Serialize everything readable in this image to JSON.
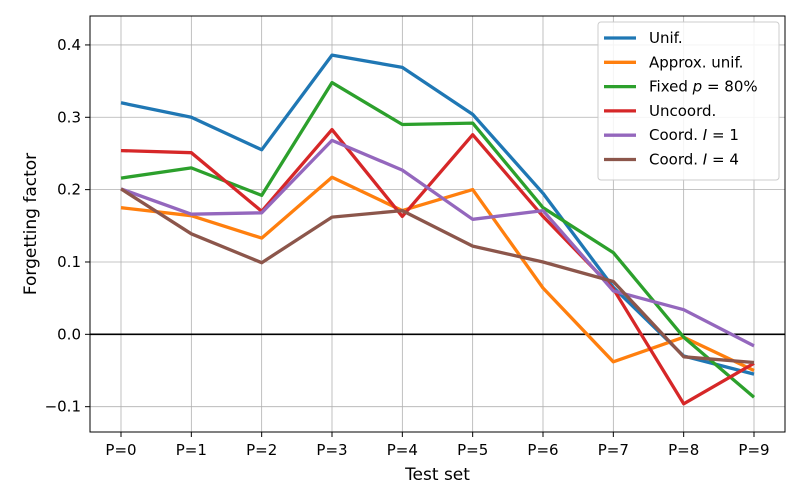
{
  "chart_data": {
    "type": "line",
    "xlabel": "Test set",
    "ylabel": "Forgetting factor",
    "categories": [
      "P=0",
      "P=1",
      "P=2",
      "P=3",
      "P=4",
      "P=5",
      "P=6",
      "P=7",
      "P=8",
      "P=9"
    ],
    "ylim": [
      -0.135,
      0.44
    ],
    "yticks": [
      -0.1,
      0.0,
      0.1,
      0.2,
      0.3,
      0.4
    ],
    "ytick_labels": [
      "−0.1",
      "0.0",
      "0.1",
      "0.2",
      "0.3",
      "0.4"
    ],
    "grid": true,
    "zero_line": true,
    "legend_position": "top-right",
    "series": [
      {
        "name": "Unif.",
        "legend": [
          {
            "t": "Unif."
          }
        ],
        "color": "#1f77b4",
        "values": [
          0.32,
          0.3,
          0.255,
          0.386,
          0.369,
          0.304,
          0.195,
          0.065,
          -0.03,
          -0.055
        ]
      },
      {
        "name": "Approx. unif.",
        "legend": [
          {
            "t": "Approx. unif."
          }
        ],
        "color": "#ff7f0e",
        "values": [
          0.175,
          0.164,
          0.133,
          0.217,
          0.171,
          0.2,
          0.064,
          -0.038,
          -0.004,
          -0.05
        ]
      },
      {
        "name": "Fixed p = 80%",
        "legend": [
          {
            "t": "Fixed "
          },
          {
            "t": "p",
            "i": true
          },
          {
            "t": " = 80%"
          }
        ],
        "color": "#2ca02c",
        "values": [
          0.216,
          0.23,
          0.192,
          0.348,
          0.29,
          0.292,
          0.175,
          0.113,
          -0.004,
          -0.087
        ]
      },
      {
        "name": "Uncoord.",
        "legend": [
          {
            "t": "Uncoord."
          }
        ],
        "color": "#d62728",
        "values": [
          0.254,
          0.251,
          0.17,
          0.283,
          0.163,
          0.276,
          0.163,
          0.063,
          -0.096,
          -0.04
        ]
      },
      {
        "name": "Coord. I = 1",
        "legend": [
          {
            "t": "Coord. "
          },
          {
            "t": "I",
            "i": true
          },
          {
            "t": " = 1"
          }
        ],
        "color": "#9467bd",
        "values": [
          0.201,
          0.166,
          0.168,
          0.268,
          0.227,
          0.159,
          0.171,
          0.06,
          0.034,
          -0.016
        ]
      },
      {
        "name": "Coord. I = 4",
        "legend": [
          {
            "t": "Coord. "
          },
          {
            "t": "I",
            "i": true
          },
          {
            "t": " = 4"
          }
        ],
        "color": "#8c564b",
        "values": [
          0.201,
          0.139,
          0.099,
          0.162,
          0.171,
          0.122,
          0.1,
          0.073,
          -0.031,
          -0.039
        ]
      }
    ]
  }
}
